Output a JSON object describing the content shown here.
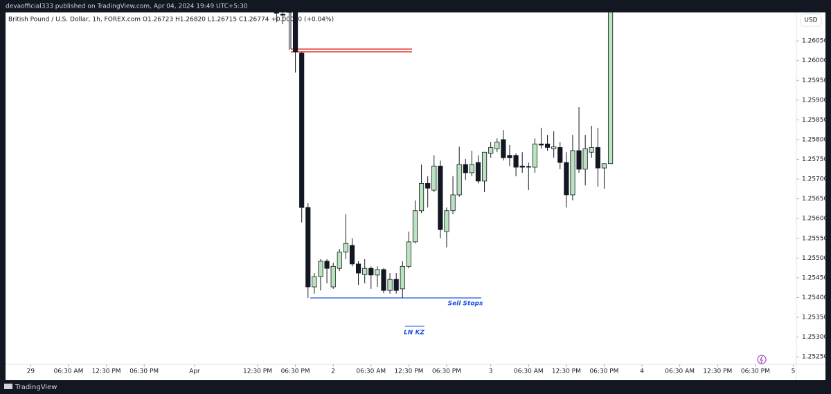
{
  "page": {
    "publisher_line": "devaofficial333 published on TradingView.com, Apr 04, 2024 19:49 UTC+5:30",
    "brand": "TradingView"
  },
  "chart_data": {
    "type": "candlestick",
    "title": "British Pound / U.S. Dollar, 1h, FOREX.com  O1.26723 H1.26820 L1.26715 C1.26774 +0.00050 (+0.04%)",
    "currency": "USD",
    "annotations": [
      "Sell Stops",
      "LN KZ"
    ],
    "up_color": "#b9e4bd",
    "down_color": "#131722",
    "outline_color": "#131722",
    "x": [
      39,
      40,
      41,
      42,
      43,
      44,
      45,
      46,
      47,
      48,
      49,
      50,
      51,
      52,
      53,
      54,
      55,
      56,
      57,
      58,
      59,
      60,
      61,
      62,
      63,
      64,
      65,
      66,
      67,
      68,
      69,
      70,
      71,
      72,
      73,
      74,
      75,
      76,
      77,
      78,
      79,
      80,
      81,
      82,
      83,
      84,
      85,
      86,
      87,
      88,
      89,
      90,
      91,
      92
    ],
    "open": [
      1.26125,
      1.26118,
      1.26127,
      1.26122,
      1.26019,
      1.25628,
      1.25427,
      1.25453,
      1.25492,
      1.25427,
      1.25474,
      1.25515,
      1.25532,
      1.25485,
      1.25458,
      1.25474,
      1.25457,
      1.25471,
      1.25418,
      1.25446,
      1.25422,
      1.25479,
      1.25541,
      1.2562,
      1.25689,
      1.25672,
      1.25733,
      1.25567,
      1.2562,
      1.2566,
      1.25737,
      1.25716,
      1.25742,
      1.25695,
      1.25765,
      1.25777,
      1.258,
      1.2576,
      1.2576,
      1.25733,
      1.25732,
      1.2573,
      1.25789,
      1.25789,
      1.25777,
      1.2578,
      1.25742,
      1.2566,
      1.25772,
      1.25725,
      1.25768,
      1.2578,
      1.25728,
      1.25739
    ],
    "high": [
      1.26132,
      1.26122,
      1.26132,
      1.26132,
      1.26022,
      1.25639,
      1.25462,
      1.25497,
      1.25497,
      1.25488,
      1.25523,
      1.25611,
      1.2555,
      1.25492,
      1.25497,
      1.25479,
      1.25479,
      1.25474,
      1.25462,
      1.25462,
      1.25492,
      1.25567,
      1.25646,
      1.25737,
      1.25707,
      1.2576,
      1.25747,
      1.25628,
      1.25707,
      1.25782,
      1.25751,
      1.25772,
      1.2576,
      1.25768,
      1.25794,
      1.25803,
      1.25824,
      1.25786,
      1.25765,
      1.25768,
      1.25742,
      1.25803,
      1.2583,
      1.25812,
      1.25821,
      1.25794,
      1.25768,
      1.25812,
      1.25882,
      1.25812,
      1.25835,
      1.2583,
      1.25739,
      1.26132
    ],
    "low": [
      1.26097,
      1.26092,
      1.26027,
      1.2597,
      1.2559,
      1.25399,
      1.2541,
      1.25418,
      1.25436,
      1.25422,
      1.25467,
      1.25497,
      1.25479,
      1.25432,
      1.25436,
      1.25422,
      1.25427,
      1.25411,
      1.2541,
      1.2541,
      1.25399,
      1.25474,
      1.25537,
      1.25614,
      1.25628,
      1.25667,
      1.2555,
      1.25527,
      1.25611,
      1.25655,
      1.25698,
      1.25707,
      1.25689,
      1.25667,
      1.25754,
      1.25768,
      1.25747,
      1.25733,
      1.25707,
      1.25716,
      1.25672,
      1.25716,
      1.25777,
      1.25772,
      1.25754,
      1.25725,
      1.25628,
      1.25646,
      1.25716,
      1.25684,
      1.25754,
      1.25681,
      1.25676,
      1.25739
    ],
    "close": [
      1.2612,
      1.26115,
      1.26122,
      1.26022,
      1.25628,
      1.25427,
      1.25453,
      1.25492,
      1.25474,
      1.25479,
      1.25515,
      1.25537,
      1.25485,
      1.25462,
      1.25474,
      1.25457,
      1.25471,
      1.25418,
      1.25446,
      1.25418,
      1.25479,
      1.25541,
      1.2562,
      1.25689,
      1.25677,
      1.25733,
      1.25572,
      1.2562,
      1.2566,
      1.25737,
      1.25716,
      1.25737,
      1.25695,
      1.25768,
      1.2578,
      1.25794,
      1.25754,
      1.25754,
      1.2573,
      1.2573,
      1.2573,
      1.25789,
      1.25786,
      1.2578,
      1.25782,
      1.25742,
      1.2566,
      1.25772,
      1.25725,
      1.25777,
      1.2578,
      1.25728,
      1.25739,
      1.26127
    ],
    "xlim": [
      -4,
      121.5
    ],
    "xticks": [
      {
        "value": 0,
        "label": "29"
      },
      {
        "value": 6,
        "label": "06:30 AM"
      },
      {
        "value": 12,
        "label": "12:30 PM"
      },
      {
        "value": 18,
        "label": "06:30 PM"
      },
      {
        "value": 26,
        "label": "Apr"
      },
      {
        "value": 36,
        "label": "12:30 PM"
      },
      {
        "value": 42,
        "label": "06:30 PM"
      },
      {
        "value": 48,
        "label": "2"
      },
      {
        "value": 54,
        "label": "06:30 AM"
      },
      {
        "value": 60,
        "label": "12:30 PM"
      },
      {
        "value": 66,
        "label": "06:30 PM"
      },
      {
        "value": 73,
        "label": "3"
      },
      {
        "value": 79,
        "label": "06:30 AM"
      },
      {
        "value": 85,
        "label": "12:30 PM"
      },
      {
        "value": 91,
        "label": "06:30 PM"
      },
      {
        "value": 97,
        "label": "4"
      },
      {
        "value": 103,
        "label": "06:30 AM"
      },
      {
        "value": 109,
        "label": "12:30 PM"
      },
      {
        "value": 115,
        "label": "06:30 PM"
      },
      {
        "value": 121,
        "label": "5"
      }
    ],
    "ylim": [
      1.25231,
      1.26122
    ],
    "yticks": [
      {
        "value": 1.2605,
        "label": "1.26050"
      },
      {
        "value": 1.26,
        "label": "1.26000"
      },
      {
        "value": 1.2595,
        "label": "1.25950"
      },
      {
        "value": 1.259,
        "label": "1.25900"
      },
      {
        "value": 1.2585,
        "label": "1.25850"
      },
      {
        "value": 1.258,
        "label": "1.25800"
      },
      {
        "value": 1.2575,
        "label": "1.25750"
      },
      {
        "value": 1.257,
        "label": "1.25700"
      },
      {
        "value": 1.2565,
        "label": "1.25650"
      },
      {
        "value": 1.256,
        "label": "1.25600"
      },
      {
        "value": 1.2555,
        "label": "1.25550"
      },
      {
        "value": 1.255,
        "label": "1.25500"
      },
      {
        "value": 1.2545,
        "label": "1.25450"
      },
      {
        "value": 1.254,
        "label": "1.25400"
      },
      {
        "value": 1.2535,
        "label": "1.25350"
      },
      {
        "value": 1.253,
        "label": "1.25300"
      },
      {
        "value": 1.2525,
        "label": "1.25250"
      }
    ],
    "grid": false
  }
}
